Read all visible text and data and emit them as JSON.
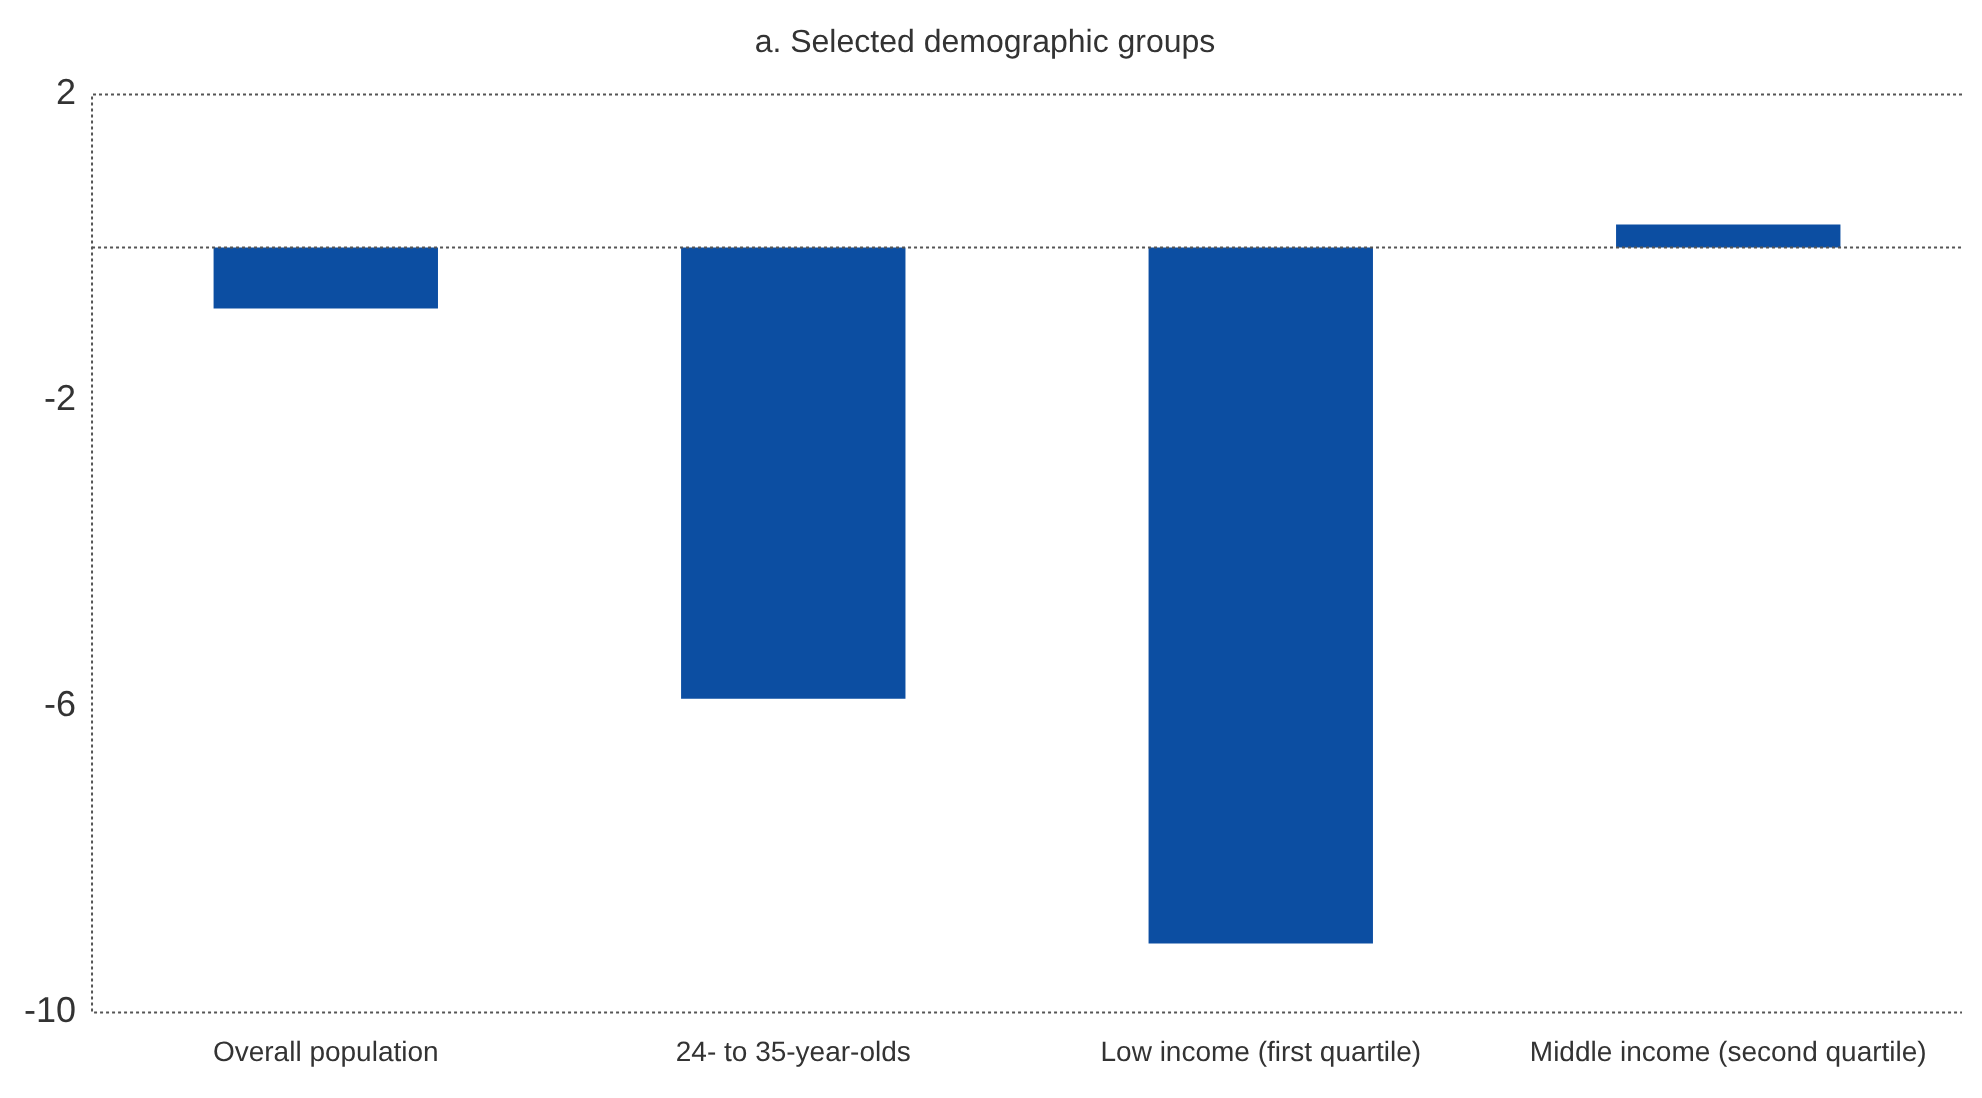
{
  "chart_data": {
    "type": "bar",
    "title": "a. Selected demographic groups",
    "categories": [
      "Overall population",
      "24- to 35-year-olds",
      "Low income (first quartile)",
      "Middle income (second quartile)"
    ],
    "values": [
      -0.8,
      -5.9,
      -9.1,
      0.3
    ],
    "color": "#0c4ea2",
    "ylim": [
      -10,
      2
    ],
    "yticks": [
      2,
      -2,
      -6,
      -10
    ],
    "grid": false,
    "legend": false,
    "ref_lines": [
      {
        "axis": "y",
        "value": 0,
        "line_style": "dotted",
        "color": "#555555"
      }
    ]
  }
}
